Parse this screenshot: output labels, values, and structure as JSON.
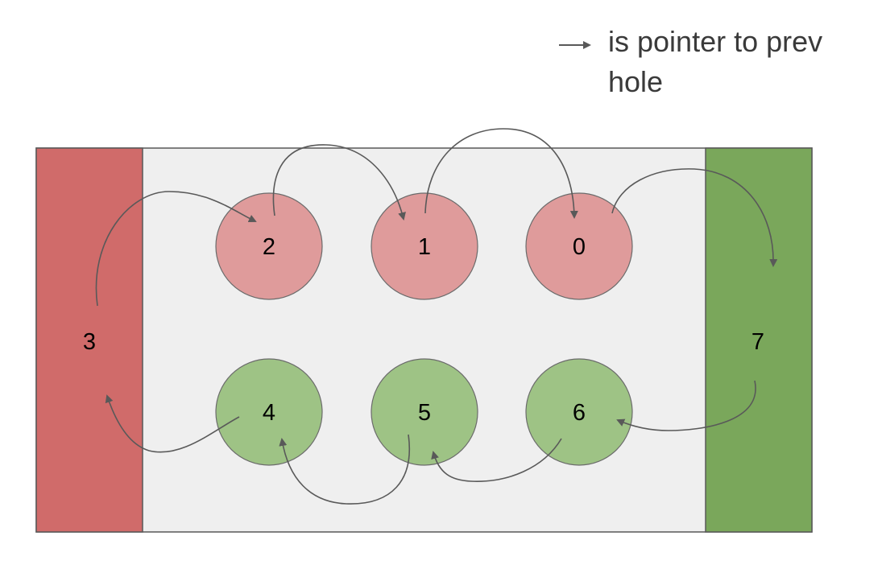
{
  "legend": {
    "text_line1": "is pointer to prev",
    "text_line2": "hole"
  },
  "colors": {
    "board_background": "#efefef",
    "board_border": "#595959",
    "red_store": "#d06b6a",
    "green_store": "#7aa75b",
    "red_pit": "#df9b9b",
    "green_pit": "#9ec385",
    "pit_border": "#6b6b6b",
    "arrow": "#595959",
    "text": "#000000"
  },
  "stores": [
    {
      "id": "store-3",
      "label": "3",
      "side": "left",
      "color_role": "red_store"
    },
    {
      "id": "store-7",
      "label": "7",
      "side": "right",
      "color_role": "green_store"
    }
  ],
  "pits": [
    {
      "id": "pit-2",
      "label": "2",
      "row": "top",
      "color_role": "red_pit"
    },
    {
      "id": "pit-1",
      "label": "1",
      "row": "top",
      "color_role": "red_pit"
    },
    {
      "id": "pit-0",
      "label": "0",
      "row": "top",
      "color_role": "red_pit"
    },
    {
      "id": "pit-4",
      "label": "4",
      "row": "bottom",
      "color_role": "green_pit"
    },
    {
      "id": "pit-5",
      "label": "5",
      "row": "bottom",
      "color_role": "green_pit"
    },
    {
      "id": "pit-6",
      "label": "6",
      "row": "bottom",
      "color_role": "green_pit"
    }
  ],
  "pointers": [
    {
      "from": "3",
      "to": "2"
    },
    {
      "from": "2",
      "to": "1"
    },
    {
      "from": "1",
      "to": "0"
    },
    {
      "from": "0",
      "to": "7"
    },
    {
      "from": "7",
      "to": "6"
    },
    {
      "from": "6",
      "to": "5"
    },
    {
      "from": "5",
      "to": "4"
    },
    {
      "from": "4",
      "to": "3"
    }
  ]
}
